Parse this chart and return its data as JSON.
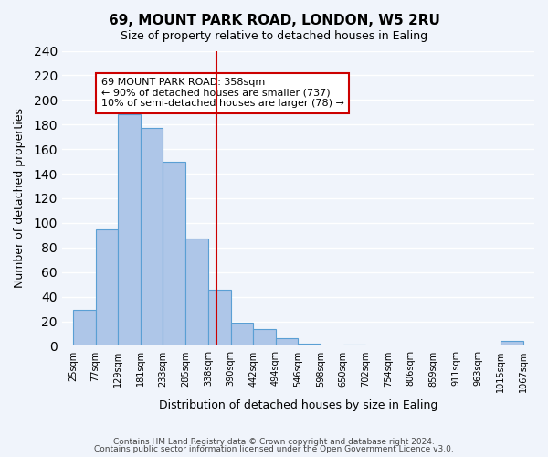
{
  "title": "69, MOUNT PARK ROAD, LONDON, W5 2RU",
  "subtitle": "Size of property relative to detached houses in Ealing",
  "xlabel": "Distribution of detached houses by size in Ealing",
  "ylabel": "Number of detached properties",
  "bar_edges": [
    25,
    77,
    129,
    181,
    233,
    285,
    338,
    390,
    442,
    494,
    546,
    598,
    650,
    702,
    754,
    806,
    859,
    911,
    963,
    1015,
    1067
  ],
  "bar_heights": [
    29,
    95,
    188,
    177,
    150,
    87,
    46,
    19,
    14,
    6,
    2,
    0,
    1,
    0,
    0,
    0,
    0,
    0,
    0,
    4
  ],
  "bar_color": "#aec6e8",
  "bar_edge_color": "#5a9fd4",
  "vline_x": 358,
  "vline_color": "#cc0000",
  "ylim": [
    0,
    240
  ],
  "yticks": [
    0,
    20,
    40,
    60,
    80,
    100,
    120,
    140,
    160,
    180,
    200,
    220,
    240
  ],
  "annotation_text": "69 MOUNT PARK ROAD: 358sqm\n← 90% of detached houses are smaller (737)\n10% of semi-detached houses are larger (78) →",
  "annotation_box_color": "#ffffff",
  "annotation_border_color": "#cc0000",
  "footnote1": "Contains HM Land Registry data © Crown copyright and database right 2024.",
  "footnote2": "Contains public sector information licensed under the Open Government Licence v3.0.",
  "tick_labels": [
    "25sqm",
    "77sqm",
    "129sqm",
    "181sqm",
    "233sqm",
    "285sqm",
    "338sqm",
    "390sqm",
    "442sqm",
    "494sqm",
    "546sqm",
    "598sqm",
    "650sqm",
    "702sqm",
    "754sqm",
    "806sqm",
    "859sqm",
    "911sqm",
    "963sqm",
    "1015sqm",
    "1067sqm"
  ],
  "background_color": "#f0f4fb",
  "grid_color": "#ffffff"
}
